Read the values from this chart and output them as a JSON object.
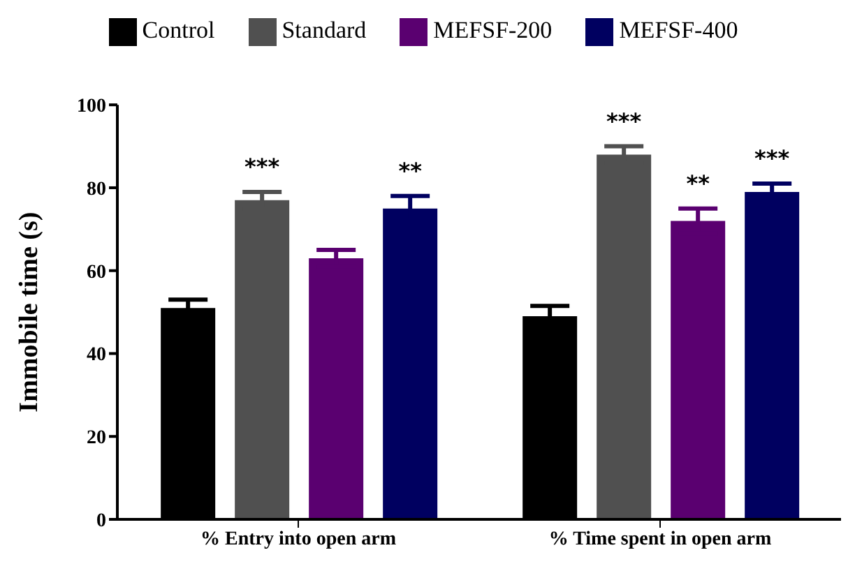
{
  "chart_data": {
    "type": "bar",
    "ylabel": "Immobile time (s)",
    "categories": [
      "% Entry into open arm",
      "% Time spent in open arm"
    ],
    "series": [
      {
        "name": "Control",
        "color": "#000000",
        "values": [
          51,
          49
        ],
        "errors": [
          2,
          2.5
        ]
      },
      {
        "name": "Standard",
        "color": "#505050",
        "values": [
          77,
          88
        ],
        "errors": [
          2,
          2
        ],
        "value_labels": [
          "***",
          "***"
        ]
      },
      {
        "name": "MEFSF-200",
        "color": "#5a0070",
        "values": [
          63,
          72
        ],
        "errors": [
          2,
          3
        ],
        "value_labels": [
          null,
          "**"
        ]
      },
      {
        "name": "MEFSF-400",
        "color": "#000060",
        "values": [
          75,
          79
        ],
        "errors": [
          3,
          2
        ],
        "value_labels": [
          "**",
          "***"
        ]
      }
    ],
    "ylim": [
      0,
      100
    ],
    "yticks": [
      0,
      20,
      40,
      60,
      80,
      100
    ],
    "grid": false,
    "legend": "top"
  }
}
